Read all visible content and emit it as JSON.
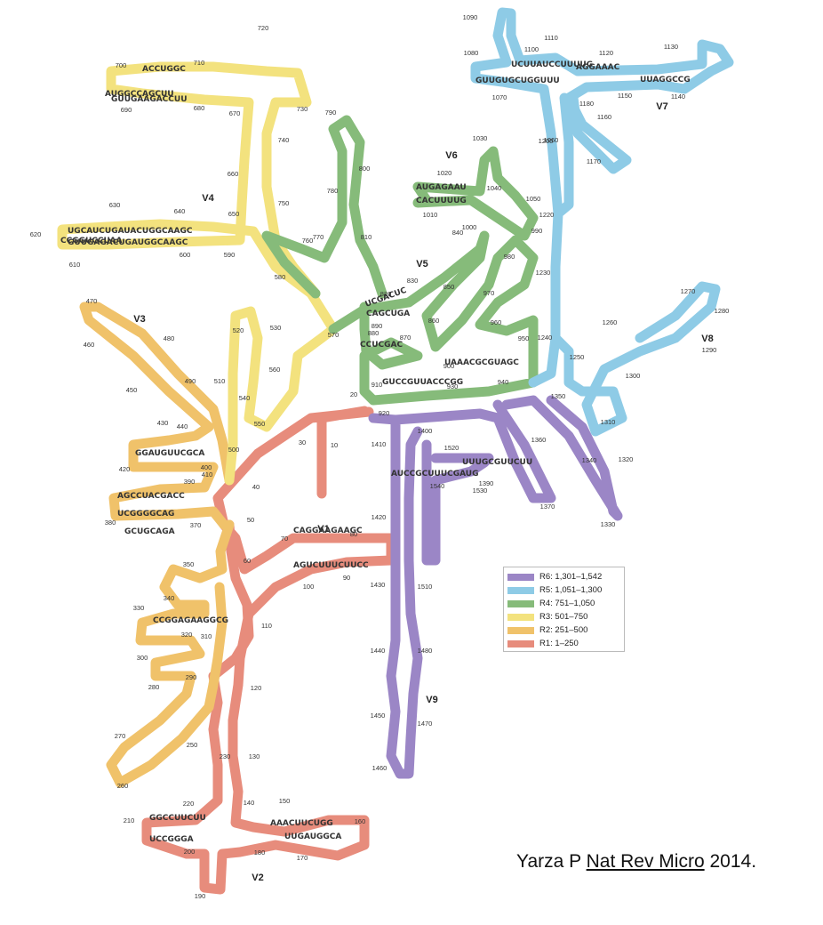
{
  "variable_regions": [
    "V1",
    "V2",
    "V3",
    "V4",
    "V5",
    "V6",
    "V7",
    "V8",
    "V9"
  ],
  "position_markers": [
    "10",
    "20",
    "30",
    "40",
    "50",
    "60",
    "70",
    "80",
    "90",
    "100",
    "110",
    "120",
    "130",
    "140",
    "150",
    "160",
    "170",
    "180",
    "190",
    "200",
    "210",
    "220",
    "230",
    "250",
    "260",
    "270",
    "280",
    "290",
    "300",
    "310",
    "320",
    "330",
    "340",
    "350",
    "370",
    "380",
    "390",
    "400",
    "410",
    "420",
    "430",
    "440",
    "450",
    "460",
    "470",
    "480",
    "490",
    "500",
    "510",
    "520",
    "530",
    "540",
    "550",
    "560",
    "570",
    "580",
    "590",
    "600",
    "610",
    "620",
    "630",
    "640",
    "650",
    "660",
    "670",
    "680",
    "690",
    "700",
    "710",
    "720",
    "730",
    "740",
    "750",
    "760",
    "770",
    "780",
    "790",
    "800",
    "810",
    "820",
    "830",
    "840",
    "850",
    "860",
    "870",
    "880",
    "890",
    "900",
    "910",
    "920",
    "930",
    "940",
    "950",
    "960",
    "970",
    "980",
    "990",
    "1000",
    "1010",
    "1020",
    "1030",
    "1040",
    "1050",
    "1060",
    "1070",
    "1080",
    "1090",
    "1100",
    "1110",
    "1120",
    "1130",
    "1140",
    "1150",
    "1160",
    "1170",
    "1180",
    "1200",
    "1220",
    "1230",
    "1240",
    "1250",
    "1260",
    "1270",
    "1280",
    "1290",
    "1300",
    "1310",
    "1320",
    "1330",
    "1340",
    "1350",
    "1360",
    "1370",
    "1390",
    "1400",
    "1410",
    "1420",
    "1430",
    "1440",
    "1450",
    "1460",
    "1470",
    "1480",
    "1510",
    "1520",
    "1530",
    "1540"
  ],
  "legend": [
    {
      "label": "R6: 1,301–1,542",
      "color": "#9b86c6"
    },
    {
      "label": "R5: 1,051–1,300",
      "color": "#8ecbe6"
    },
    {
      "label": "R4: 751–1,050",
      "color": "#86bb7a"
    },
    {
      "label": "R3: 501–750",
      "color": "#f3e27e"
    },
    {
      "label": "R2: 251–500",
      "color": "#f0c26a"
    },
    {
      "label": "R1: 1–250",
      "color": "#e78c7c"
    }
  ],
  "sequence_fragments": [
    "CAGGAAGAAGC",
    "AGUCUUUCUUCC",
    "GGCCUUCUU",
    "AAACUUCUGG",
    "UCCGGGA",
    "UUGAUGGCA",
    "AGCCUACGACC",
    "UCGGGGCAG",
    "GGAUGUUCGCA",
    "AUGGCCAGCUU",
    "GUUGAAGACCUU",
    "UGCAUCUGAUACUGGCAAGC",
    "GUUGAGACUGAUGGCAAGC",
    "CCGGUCCUAA",
    "CAGCUGA",
    "UCGACUC",
    "AUGAGAAU",
    "CACUUUUG",
    "UCUUAUCCUUUUG",
    "AGGAAAC",
    "GUUGUGCUGGUUU",
    "UUAGGCCG",
    "ACCUGGC",
    "UUUGCGUUCUU",
    "UAAACGCGUAGC",
    "GUCCGUUACCCGG",
    "CCUCGAC",
    "GCUGCAGA",
    "AUCCGCUUUCGAUG",
    "CCGGAGAAGGCG",
    "GAGCUUCCUGG",
    "UGCACGG"
  ],
  "citation": {
    "author": "Yarza P",
    "journal": "Nat Rev Micro",
    "year": "2014."
  },
  "colors": {
    "R1": "#e78c7c",
    "R2": "#f0c26a",
    "R3": "#f3e27e",
    "R4": "#86bb7a",
    "R5": "#8ecbe6",
    "R6": "#9b86c6"
  }
}
